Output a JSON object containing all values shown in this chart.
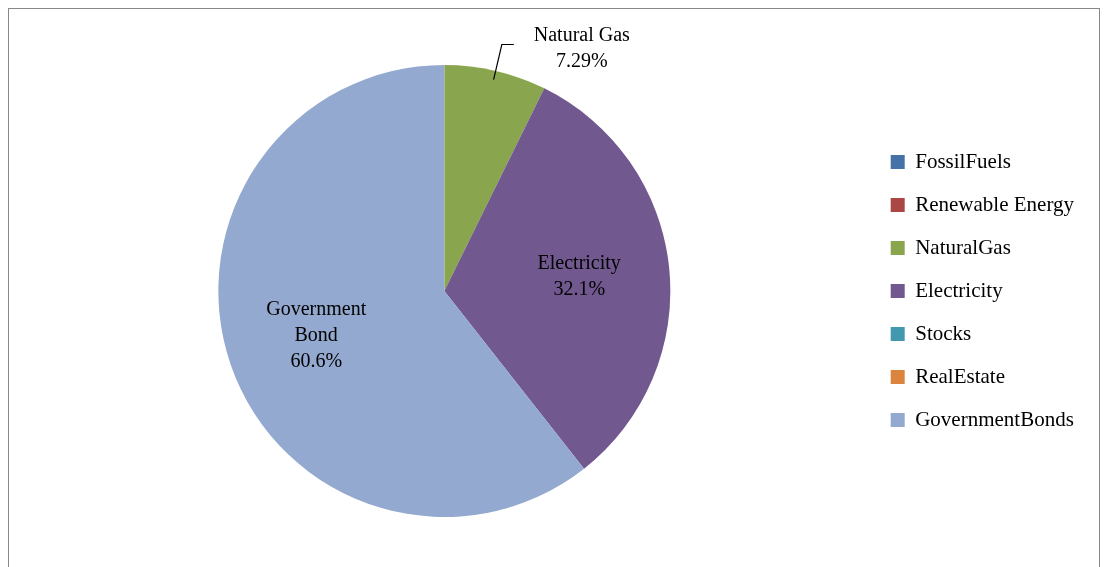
{
  "chart_data": {
    "type": "pie",
    "categories": [
      "FossilFuels",
      "Renewable Energy",
      "NaturalGas",
      "Electricity",
      "Stocks",
      "RealEstate",
      "GovernmentBonds"
    ],
    "values": [
      0,
      0,
      7.29,
      32.1,
      0,
      0,
      60.6
    ],
    "colors": [
      "#4572a7",
      "#aa4643",
      "#89a54e",
      "#71588f",
      "#4198af",
      "#db843d",
      "#93a9cf"
    ],
    "value_labels": [
      null,
      null,
      "Natural Gas\n7.29%",
      "Electricity\n32.1%",
      null,
      null,
      "Government\nBond\n60.6%"
    ],
    "legend": "right"
  }
}
